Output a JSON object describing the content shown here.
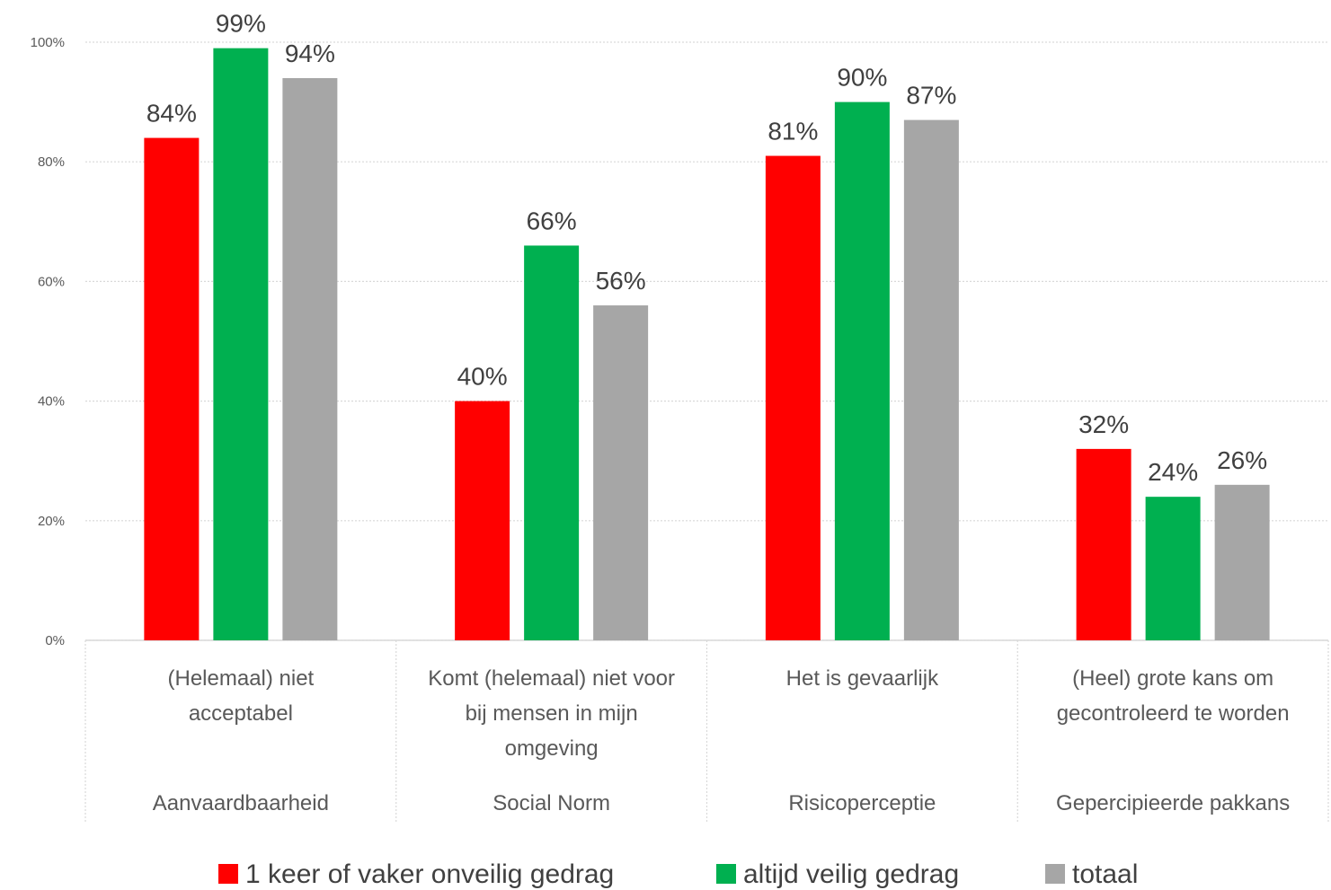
{
  "chart_data": {
    "type": "bar",
    "title": "",
    "xlabel": "",
    "ylabel": "",
    "ylim": [
      0,
      100
    ],
    "yticks": [
      "0%",
      "20%",
      "40%",
      "60%",
      "80%",
      "100%"
    ],
    "ytick_values": [
      0,
      20,
      40,
      60,
      80,
      100
    ],
    "grid": true,
    "legend_position": "bottom",
    "categories": [
      {
        "lines": [
          "(Helemaal) niet",
          "acceptabel"
        ],
        "group": "Aanvaardbaarheid"
      },
      {
        "lines": [
          "Komt (helemaal) niet voor",
          "bij mensen in mijn",
          "omgeving"
        ],
        "group": "Social Norm"
      },
      {
        "lines": [
          "Het is gevaarlijk"
        ],
        "group": "Risicoperceptie"
      },
      {
        "lines": [
          "(Heel) grote kans om",
          "gecontroleerd te worden"
        ],
        "group": "Gepercipieerde pakkans"
      }
    ],
    "series": [
      {
        "name": "1 keer of vaker onveilig gedrag",
        "color": "#ff0000",
        "values": [
          84,
          40,
          81,
          32
        ],
        "labels": [
          "84%",
          "40%",
          "81%",
          "32%"
        ]
      },
      {
        "name": "altijd veilig gedrag",
        "color": "#00b050",
        "values": [
          99,
          66,
          90,
          24
        ],
        "labels": [
          "99%",
          "66%",
          "90%",
          "24%"
        ]
      },
      {
        "name": "totaal",
        "color": "#a6a6a6",
        "values": [
          94,
          56,
          87,
          26
        ],
        "labels": [
          "94%",
          "56%",
          "87%",
          "26%"
        ]
      }
    ]
  }
}
